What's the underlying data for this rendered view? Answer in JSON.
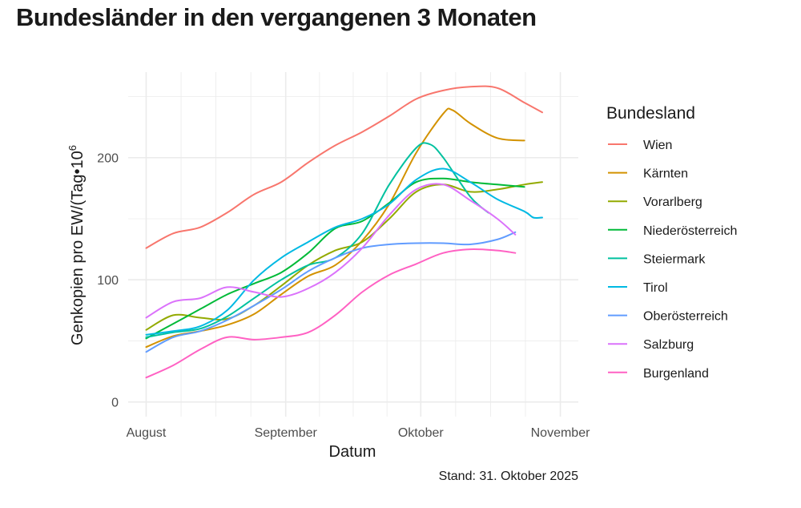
{
  "chart_data": {
    "type": "line",
    "title": "Bundesländer in den vergangenen 3 Monaten",
    "xlabel": "Datum",
    "ylabel_main": "Genkopien pro EW/(Tag",
    "ylabel_sep": "•",
    "ylabel_base": "10",
    "ylabel_exp": "6",
    "caption": "Stand: 31. Oktober 2025",
    "legend_title": "Bundesland",
    "xlim": [
      -4,
      96
    ],
    "ylim": [
      -12,
      270
    ],
    "x_ticks": [
      {
        "day": 0,
        "label": "August"
      },
      {
        "day": 31,
        "label": "September"
      },
      {
        "day": 61,
        "label": "Oktober"
      },
      {
        "day": 92,
        "label": "November"
      }
    ],
    "y_ticks": [
      0,
      100,
      200
    ],
    "series": [
      {
        "name": "Wien",
        "color": "#F8766D",
        "points": [
          [
            0,
            126
          ],
          [
            6,
            138
          ],
          [
            12,
            143
          ],
          [
            18,
            155
          ],
          [
            24,
            170
          ],
          [
            30,
            180
          ],
          [
            36,
            196
          ],
          [
            42,
            210
          ],
          [
            48,
            221
          ],
          [
            54,
            234
          ],
          [
            60,
            248
          ],
          [
            66,
            255
          ],
          [
            72,
            258
          ],
          [
            78,
            257
          ],
          [
            84,
            245
          ],
          [
            88,
            237
          ]
        ]
      },
      {
        "name": "Kärnten",
        "color": "#D39200",
        "points": [
          [
            0,
            45
          ],
          [
            6,
            54
          ],
          [
            12,
            58
          ],
          [
            18,
            63
          ],
          [
            24,
            72
          ],
          [
            30,
            88
          ],
          [
            36,
            103
          ],
          [
            42,
            112
          ],
          [
            48,
            132
          ],
          [
            54,
            162
          ],
          [
            60,
            204
          ],
          [
            66,
            236
          ],
          [
            68,
            239
          ],
          [
            72,
            228
          ],
          [
            78,
            216
          ],
          [
            84,
            214
          ]
        ]
      },
      {
        "name": "Vorarlberg",
        "color": "#93AA00",
        "points": [
          [
            0,
            59
          ],
          [
            6,
            71
          ],
          [
            12,
            69
          ],
          [
            18,
            68
          ],
          [
            24,
            79
          ],
          [
            30,
            95
          ],
          [
            36,
            112
          ],
          [
            42,
            124
          ],
          [
            48,
            131
          ],
          [
            54,
            150
          ],
          [
            60,
            172
          ],
          [
            66,
            178
          ],
          [
            72,
            172
          ],
          [
            78,
            174
          ],
          [
            84,
            178
          ],
          [
            88,
            180
          ]
        ]
      },
      {
        "name": "Niederösterreich",
        "color": "#00BA38",
        "points": [
          [
            0,
            52
          ],
          [
            6,
            64
          ],
          [
            12,
            76
          ],
          [
            18,
            88
          ],
          [
            24,
            97
          ],
          [
            30,
            106
          ],
          [
            36,
            122
          ],
          [
            42,
            142
          ],
          [
            48,
            148
          ],
          [
            54,
            163
          ],
          [
            60,
            180
          ],
          [
            66,
            183
          ],
          [
            72,
            180
          ],
          [
            78,
            178
          ],
          [
            84,
            176
          ]
        ]
      },
      {
        "name": "Steiermark",
        "color": "#00C19F",
        "points": [
          [
            0,
            53
          ],
          [
            6,
            57
          ],
          [
            12,
            60
          ],
          [
            18,
            70
          ],
          [
            24,
            85
          ],
          [
            30,
            100
          ],
          [
            36,
            112
          ],
          [
            42,
            118
          ],
          [
            48,
            138
          ],
          [
            54,
            178
          ],
          [
            60,
            208
          ],
          [
            63,
            211
          ],
          [
            66,
            200
          ],
          [
            72,
            168
          ],
          [
            76,
            155
          ]
        ]
      },
      {
        "name": "Tirol",
        "color": "#00B9E3",
        "points": [
          [
            0,
            55
          ],
          [
            6,
            58
          ],
          [
            12,
            62
          ],
          [
            18,
            75
          ],
          [
            24,
            100
          ],
          [
            30,
            118
          ],
          [
            36,
            131
          ],
          [
            42,
            143
          ],
          [
            48,
            150
          ],
          [
            54,
            162
          ],
          [
            60,
            182
          ],
          [
            66,
            191
          ],
          [
            72,
            180
          ],
          [
            78,
            166
          ],
          [
            84,
            156
          ],
          [
            86,
            151
          ],
          [
            88,
            151
          ]
        ]
      },
      {
        "name": "Oberösterreich",
        "color": "#619CFF",
        "points": [
          [
            0,
            41
          ],
          [
            6,
            53
          ],
          [
            12,
            58
          ],
          [
            18,
            67
          ],
          [
            24,
            79
          ],
          [
            30,
            92
          ],
          [
            36,
            107
          ],
          [
            42,
            118
          ],
          [
            48,
            126
          ],
          [
            54,
            129
          ],
          [
            60,
            130
          ],
          [
            66,
            130
          ],
          [
            72,
            129
          ],
          [
            78,
            133
          ],
          [
            82,
            139
          ]
        ]
      },
      {
        "name": "Salzburg",
        "color": "#DB72FB",
        "points": [
          [
            0,
            69
          ],
          [
            6,
            82
          ],
          [
            12,
            85
          ],
          [
            18,
            94
          ],
          [
            24,
            90
          ],
          [
            30,
            86
          ],
          [
            36,
            93
          ],
          [
            42,
            106
          ],
          [
            48,
            126
          ],
          [
            54,
            153
          ],
          [
            60,
            174
          ],
          [
            66,
            178
          ],
          [
            72,
            165
          ],
          [
            78,
            150
          ],
          [
            82,
            137
          ]
        ]
      },
      {
        "name": "Burgenland",
        "color": "#FF61C3",
        "points": [
          [
            0,
            20
          ],
          [
            6,
            30
          ],
          [
            12,
            43
          ],
          [
            18,
            53
          ],
          [
            24,
            51
          ],
          [
            30,
            53
          ],
          [
            36,
            57
          ],
          [
            42,
            71
          ],
          [
            48,
            90
          ],
          [
            54,
            104
          ],
          [
            60,
            113
          ],
          [
            66,
            122
          ],
          [
            72,
            125
          ],
          [
            78,
            124
          ],
          [
            82,
            122
          ]
        ]
      }
    ]
  }
}
